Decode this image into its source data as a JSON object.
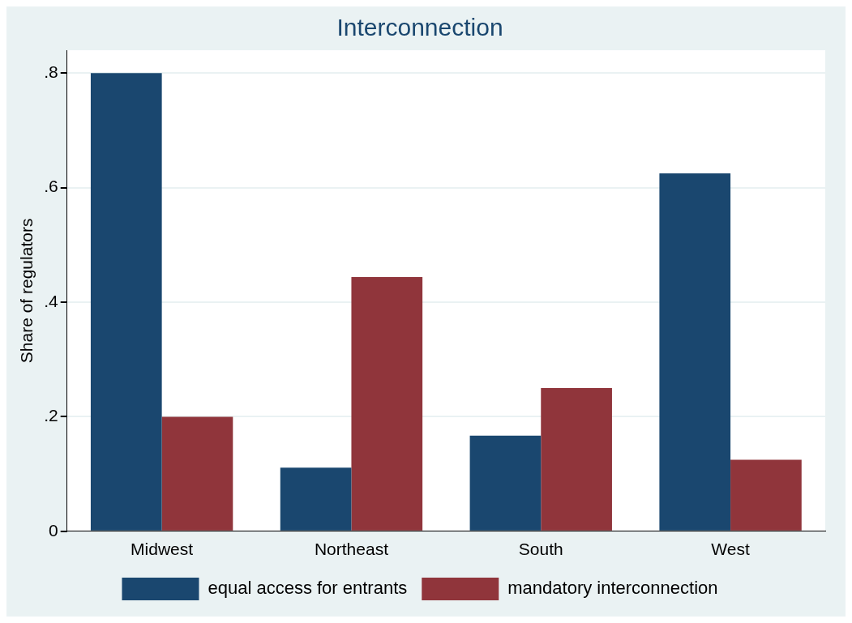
{
  "chart_data": {
    "type": "bar",
    "title": "Interconnection",
    "ylabel": "Share of regulators",
    "categories": [
      "Midwest",
      "Northeast",
      "South",
      "West"
    ],
    "series": [
      {
        "name": "equal access for entrants",
        "color": "#1a476f",
        "values": [
          0.8,
          0.111,
          0.167,
          0.625
        ]
      },
      {
        "name": "mandatory interconnection",
        "color": "#90353b",
        "values": [
          0.2,
          0.444,
          0.25,
          0.125
        ]
      }
    ],
    "ylim": [
      0,
      0.84
    ],
    "yticks": [
      0,
      {
        "value": 0.2,
        "label": ".2"
      },
      {
        "value": 0.4,
        "label": ".4"
      },
      {
        "value": 0.6,
        "label": ".6"
      },
      {
        "value": 0.8,
        "label": ".8"
      }
    ],
    "grid": "y",
    "legend": "bottom"
  }
}
